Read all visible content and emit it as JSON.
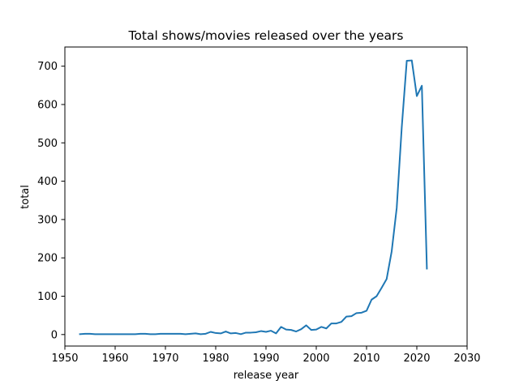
{
  "chart_data": {
    "type": "line",
    "title": "Total shows/movies released over the years",
    "xlabel": "release year",
    "ylabel": "total",
    "xlim": [
      1950,
      2030
    ],
    "ylim": [
      -30,
      750
    ],
    "xticks": [
      1950,
      1960,
      1970,
      1980,
      1990,
      2000,
      2010,
      2020,
      2030
    ],
    "yticks": [
      0,
      100,
      200,
      300,
      400,
      500,
      600,
      700
    ],
    "grid": false,
    "colors": {
      "line": "#1f77b4"
    },
    "series": [
      {
        "x": [
          1953,
          1954,
          1955,
          1956,
          1957,
          1958,
          1959,
          1960,
          1961,
          1962,
          1963,
          1964,
          1965,
          1966,
          1967,
          1968,
          1969,
          1970,
          1971,
          1972,
          1973,
          1974,
          1975,
          1976,
          1977,
          1978,
          1979,
          1980,
          1981,
          1982,
          1983,
          1984,
          1985,
          1986,
          1987,
          1988,
          1989,
          1990,
          1991,
          1992,
          1993,
          1994,
          1995,
          1996,
          1997,
          1998,
          1999,
          2000,
          2001,
          2002,
          2003,
          2004,
          2005,
          2006,
          2007,
          2008,
          2009,
          2010,
          2011,
          2012,
          2013,
          2014,
          2015,
          2016,
          2017,
          2018,
          2019,
          2020,
          2021,
          2022
        ],
        "y": [
          1,
          2,
          2,
          1,
          1,
          1,
          1,
          1,
          1,
          1,
          1,
          1,
          2,
          2,
          1,
          1,
          2,
          2,
          2,
          2,
          2,
          1,
          2,
          3,
          1,
          2,
          7,
          4,
          3,
          8,
          3,
          4,
          1,
          5,
          5,
          6,
          9,
          7,
          10,
          3,
          20,
          13,
          12,
          8,
          14,
          24,
          12,
          13,
          20,
          16,
          29,
          29,
          33,
          47,
          48,
          56,
          57,
          62,
          91,
          100,
          122,
          145,
          217,
          330,
          540,
          714,
          715,
          622,
          649,
          172
        ]
      }
    ]
  }
}
